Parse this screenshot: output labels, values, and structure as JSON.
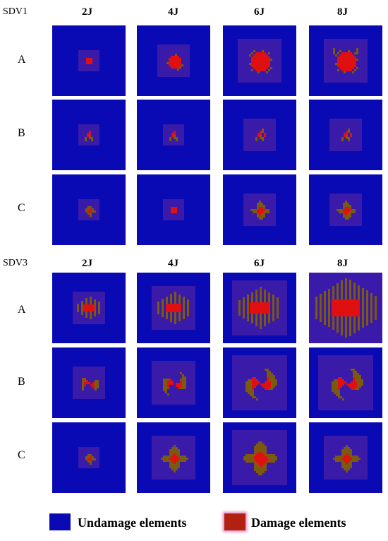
{
  "colors": {
    "undamaged": "#0a0ab4",
    "damage_zone": "#3a1aa8",
    "damage_red": "#e01010",
    "damage_olive": "#7a5a10"
  },
  "columns": [
    "2J",
    "4J",
    "6J",
    "8J"
  ],
  "rows": [
    "A",
    "B",
    "C"
  ],
  "sections": [
    {
      "label": "SDV1",
      "panels": [
        [
          {
            "level": 1,
            "shape": "square"
          },
          {
            "level": 2,
            "shape": "blob"
          },
          {
            "level": 3,
            "shape": "blob"
          },
          {
            "level": 3,
            "shape": "hbar"
          }
        ],
        [
          {
            "level": 1,
            "shape": "sparse"
          },
          {
            "level": 1,
            "shape": "sparse"
          },
          {
            "level": 2,
            "shape": "sparse"
          },
          {
            "level": 2,
            "shape": "sparse"
          }
        ],
        [
          {
            "level": 1,
            "shape": "cross"
          },
          {
            "level": 1,
            "shape": "square"
          },
          {
            "level": 2,
            "shape": "cross"
          },
          {
            "level": 2,
            "shape": "cross"
          }
        ]
      ]
    },
    {
      "label": "SDV3",
      "panels": [
        [
          {
            "level": 2,
            "shape": "vbars"
          },
          {
            "level": 3,
            "shape": "vbars"
          },
          {
            "level": 4,
            "shape": "vbars"
          },
          {
            "level": 6,
            "shape": "vbars"
          }
        ],
        [
          {
            "level": 2,
            "shape": "swirl"
          },
          {
            "level": 3,
            "shape": "swirl"
          },
          {
            "level": 4,
            "shape": "swirl"
          },
          {
            "level": 4,
            "shape": "swirl"
          }
        ],
        [
          {
            "level": 1,
            "shape": "cross"
          },
          {
            "level": 3,
            "shape": "cross"
          },
          {
            "level": 4,
            "shape": "cross"
          },
          {
            "level": 3,
            "shape": "cross"
          }
        ]
      ]
    }
  ],
  "legend": [
    {
      "label": "Undamage elements",
      "color": "#0a0ab4"
    },
    {
      "label": "Damage elements",
      "color": "#b22010"
    }
  ]
}
